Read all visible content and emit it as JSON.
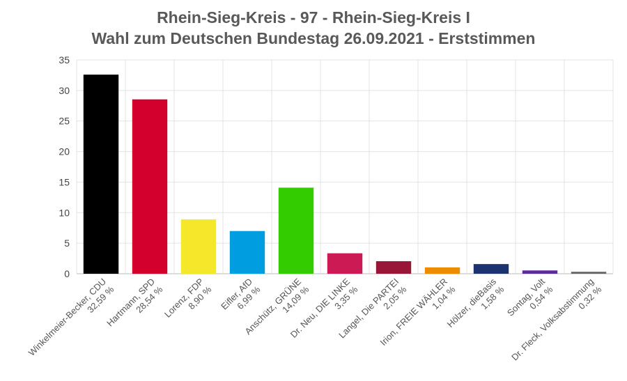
{
  "chart_data": {
    "type": "bar",
    "title": "Rhein-Sieg-Kreis - 97 - Rhein-Sieg-Kreis I",
    "subtitle": "Wahl zum Deutschen Bundestag 26.09.2021  - Erststimmen",
    "xlabel": "",
    "ylabel": "",
    "ylim": [
      0,
      35
    ],
    "yticks": [
      0,
      5,
      10,
      15,
      20,
      25,
      30,
      35
    ],
    "grid": true,
    "legend": "none",
    "categories": [
      {
        "name": "Winkelmeier-Becker, CDU",
        "pct": "32,59 %"
      },
      {
        "name": "Hartmann, SPD",
        "pct": "28,54 %"
      },
      {
        "name": "Lorenz, FDP",
        "pct": "8,90 %"
      },
      {
        "name": "Eifler, AfD",
        "pct": "6,99 %"
      },
      {
        "name": "Anschütz, GRÜNE",
        "pct": "14,09 %"
      },
      {
        "name": "Dr. Neu, DIE LINKE",
        "pct": "3,35 %"
      },
      {
        "name": "Langel, Die PARTEI",
        "pct": "2,05 %"
      },
      {
        "name": "Irion, FREIE WÄHLER",
        "pct": "1,04 %"
      },
      {
        "name": "Hölzer, dieBasis",
        "pct": "1,58 %"
      },
      {
        "name": "Sontag, Volt",
        "pct": "0,54 %"
      },
      {
        "name": "Dr. Fleck, Volksabstimmung",
        "pct": "0,32 %"
      }
    ],
    "values": [
      32.59,
      28.54,
      8.9,
      6.99,
      14.09,
      3.35,
      2.05,
      1.04,
      1.58,
      0.54,
      0.32
    ],
    "colors": [
      "#000000",
      "#d3002b",
      "#f5e82b",
      "#009de0",
      "#33cc00",
      "#cc1a55",
      "#9a1638",
      "#ee8c00",
      "#1c3370",
      "#5a2c9e",
      "#666666"
    ]
  }
}
